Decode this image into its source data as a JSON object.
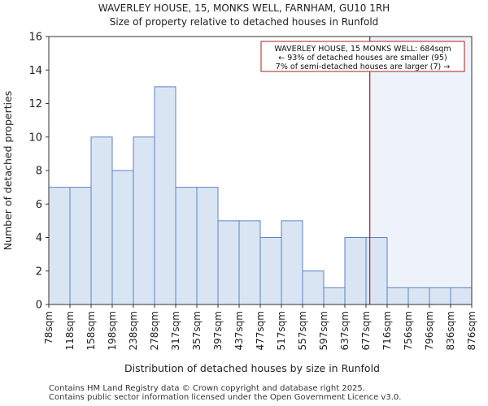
{
  "chart_data": {
    "type": "bar",
    "title": "WAVERLEY HOUSE, 15, MONKS WELL, FARNHAM, GU10 1RH",
    "subtitle": "Size of property relative to detached houses in Runfold",
    "xlabel": "Distribution of detached houses by size in Runfold",
    "ylabel": "Number of detached properties",
    "bin_edges": [
      "78sqm",
      "118sqm",
      "158sqm",
      "198sqm",
      "238sqm",
      "278sqm",
      "317sqm",
      "357sqm",
      "397sqm",
      "437sqm",
      "477sqm",
      "517sqm",
      "557sqm",
      "597sqm",
      "637sqm",
      "677sqm",
      "716sqm",
      "756sqm",
      "796sqm",
      "836sqm",
      "876sqm"
    ],
    "values": [
      7,
      7,
      10,
      8,
      10,
      13,
      7,
      7,
      5,
      5,
      4,
      5,
      2,
      1,
      4,
      4,
      1,
      1,
      1,
      1
    ],
    "ylim": [
      0,
      16
    ],
    "yticks": [
      0,
      2,
      4,
      6,
      8,
      10,
      12,
      14,
      16
    ],
    "marker": {
      "value_sqm": 684,
      "position_bins": 15.18
    },
    "annotation": {
      "line1": "WAVERLEY HOUSE, 15 MONKS WELL: 684sqm",
      "line2": "← 93% of detached houses are smaller (95)",
      "line3": "7% of semi-detached houses are larger (7) →"
    },
    "colors": {
      "bar_fill": "#dae5f4",
      "bar_edge": "#5b84c4",
      "marker": "#b31b1b",
      "highlight": "#eef3fb"
    }
  },
  "footer": {
    "line1": "Contains HM Land Registry data © Crown copyright and database right 2025.",
    "line2": "Contains public sector information licensed under the Open Government Licence v3.0."
  }
}
